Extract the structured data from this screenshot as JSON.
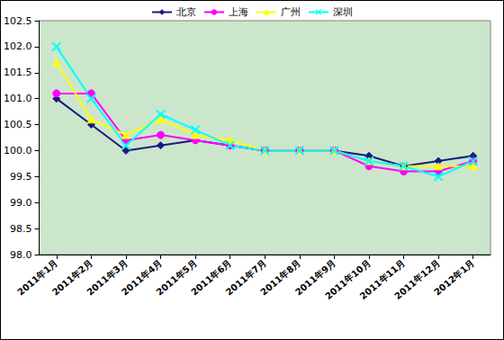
{
  "chart_data": {
    "type": "line",
    "categories": [
      "2011年1月",
      "2011年2月",
      "2011年3月",
      "2011年4月",
      "2011年5月",
      "2011年6月",
      "2011年7月",
      "2011年8月",
      "2011年9月",
      "2011年10月",
      "2011年11月",
      "2011年12月",
      "2012年1月"
    ],
    "series": [
      {
        "name": "北京",
        "color": "#1a1a80",
        "marker": "diamond",
        "values": [
          101.0,
          100.5,
          100.0,
          100.1,
          100.2,
          100.1,
          100.0,
          100.0,
          100.0,
          99.9,
          99.7,
          99.8,
          99.9
        ]
      },
      {
        "name": "上海",
        "color": "#ff00ff",
        "marker": "circle",
        "values": [
          101.1,
          101.1,
          100.2,
          100.3,
          100.2,
          100.1,
          100.0,
          100.0,
          100.0,
          99.7,
          99.6,
          99.6,
          99.8
        ]
      },
      {
        "name": "广州",
        "color": "#ffff00",
        "marker": "triangle",
        "values": [
          101.7,
          100.6,
          100.3,
          100.6,
          100.3,
          100.2,
          100.0,
          100.0,
          100.0,
          99.8,
          99.7,
          99.7,
          99.7
        ]
      },
      {
        "name": "深圳",
        "color": "#00ffff",
        "marker": "x",
        "values": [
          102.0,
          101.0,
          100.1,
          100.7,
          100.4,
          100.1,
          100.0,
          100.0,
          100.0,
          99.8,
          99.7,
          99.5,
          99.8
        ]
      }
    ],
    "ylim": [
      98,
      102.5
    ],
    "yticks": [
      {
        "value": 98,
        "label": "98.0"
      },
      98.5,
      {
        "value": 99,
        "label": "99.0"
      },
      99.5,
      {
        "value": 100,
        "label": "100.0"
      },
      100.5,
      {
        "value": 101,
        "label": "101.0"
      },
      101.5,
      {
        "value": 102,
        "label": "102.0"
      },
      102.5
    ],
    "grid": false,
    "legend": "top"
  }
}
